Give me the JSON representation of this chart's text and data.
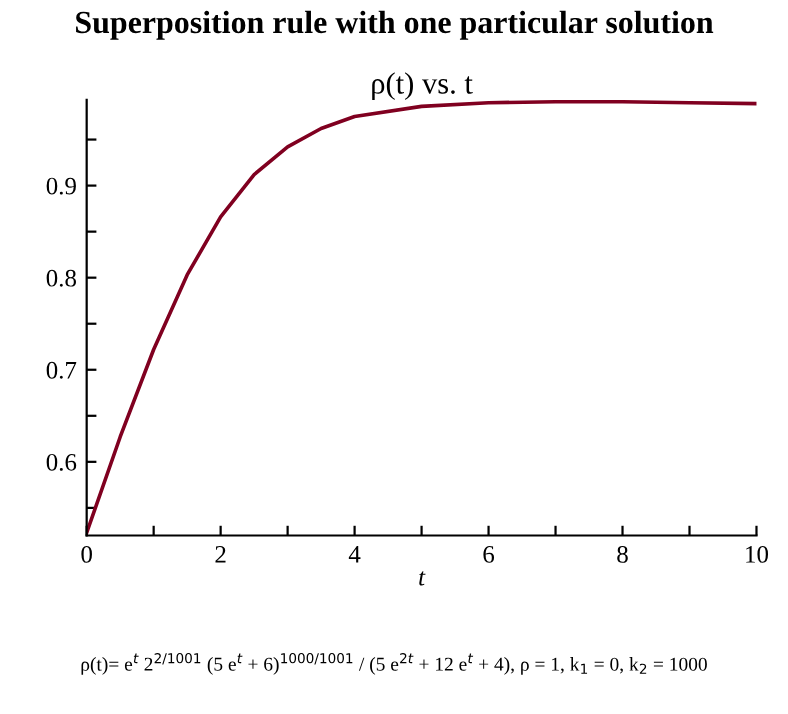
{
  "chart_data": {
    "type": "line",
    "title": "Superposition rule with one particular solution",
    "subtitle": "ρ(t) vs. t",
    "xlabel": "t",
    "annotations": [
      "ρ(t)= e$^{t}$ 2$^{2/1001}$ (5 e$^{t}$ + 6)$^{1000/1001}$ / (5 e$^{2t}$ + 12 e$^{t}$ + 4), ρ = 1, k$_{1}$ = 0, k$_{2}$ = 1000"
    ],
    "x": [
      0,
      0.5,
      1,
      1.5,
      2,
      2.5,
      3,
      3.5,
      4,
      5,
      6,
      7,
      8,
      9,
      10
    ],
    "series": [
      {
        "color": "#800020",
        "values": [
          0.523,
          0.627,
          0.722,
          0.803,
          0.866,
          0.912,
          0.942,
          0.962,
          0.975,
          0.986,
          0.99,
          0.991,
          0.991,
          0.99,
          0.989
        ]
      }
    ],
    "xlim": [
      0,
      10
    ],
    "ylim": [
      0.52,
      0.993
    ],
    "xticks": [
      0,
      {
        "value": 1,
        "label": null
      },
      2,
      {
        "value": 3,
        "label": null
      },
      4,
      {
        "value": 5,
        "label": null
      },
      6,
      {
        "value": 7,
        "label": null
      },
      8,
      {
        "value": 9,
        "label": null
      },
      10
    ],
    "yticks": [
      {
        "value": 0.55,
        "label": null
      },
      0.6,
      {
        "value": 0.65,
        "label": null
      },
      0.7,
      {
        "value": 0.75,
        "label": null
      },
      0.8,
      {
        "value": 0.85,
        "label": null
      },
      0.9,
      {
        "value": 0.95,
        "label": null
      }
    ],
    "grid": false,
    "legend": false,
    "marker": "none",
    "line_style": "solid"
  }
}
